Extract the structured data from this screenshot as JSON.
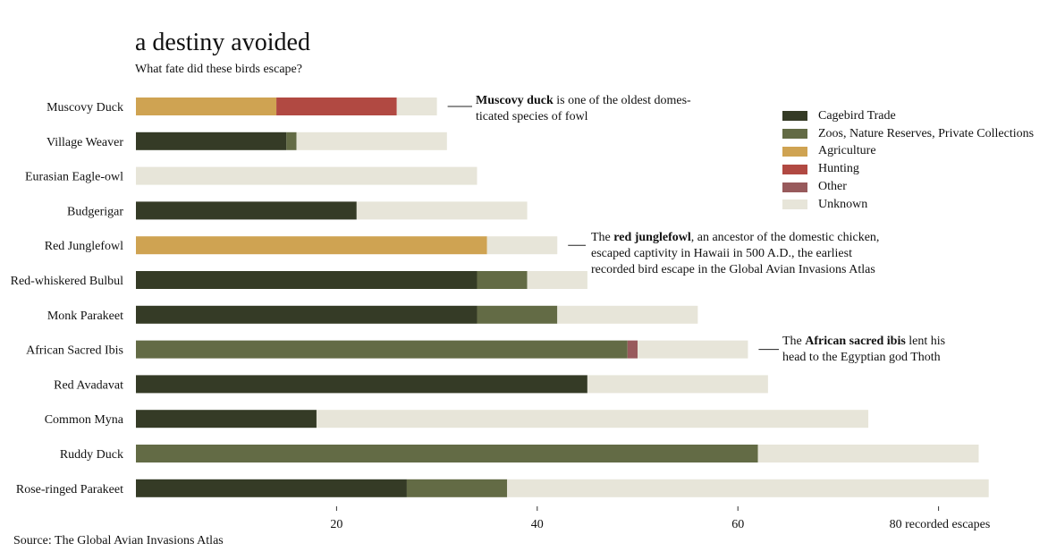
{
  "title": "a destiny avoided",
  "subtitle": "What fate did these birds escape?",
  "source": "Source: The Global Avian Invasions Atlas",
  "chart_data": {
    "type": "bar",
    "orientation": "horizontal",
    "stacked": true,
    "title": "a destiny avoided",
    "subtitle": "What fate did these birds escape?",
    "xlabel": "recorded escapes",
    "x_ticks": [
      20,
      40,
      60,
      80
    ],
    "x_tick_labels": [
      "20",
      "40",
      "60",
      "80 recorded escapes"
    ],
    "xlim": [
      0,
      85
    ],
    "grid": false,
    "legend_position": "right",
    "categories": [
      "Muscovy Duck",
      "Village Weaver",
      "Eurasian Eagle-owl",
      "Budgerigar",
      "Red Junglefowl",
      "Red-whiskered Bulbul",
      "Monk Parakeet",
      "African Sacred Ibis",
      "Red Avadavat",
      "Common Myna",
      "Ruddy Duck",
      "Rose-ringed Parakeet"
    ],
    "series": [
      {
        "name": "Cagebird Trade",
        "color": "#353b26",
        "values": [
          0,
          15,
          0,
          22,
          0,
          34,
          34,
          0,
          45,
          18,
          0,
          27
        ]
      },
      {
        "name": "Zoos, Nature Reserves, Private Collections",
        "color": "#636b45",
        "values": [
          0,
          1,
          0,
          0,
          0,
          5,
          8,
          49,
          0,
          0,
          62,
          10
        ]
      },
      {
        "name": "Agriculture",
        "color": "#cfa352",
        "values": [
          14,
          0,
          0,
          0,
          35,
          0,
          0,
          0,
          0,
          0,
          0,
          0
        ]
      },
      {
        "name": "Hunting",
        "color": "#b14942",
        "values": [
          12,
          0,
          0,
          0,
          0,
          0,
          0,
          0,
          0,
          0,
          0,
          0
        ]
      },
      {
        "name": "Other",
        "color": "#985a5c",
        "values": [
          0,
          0,
          0,
          0,
          0,
          0,
          0,
          1,
          0,
          0,
          0,
          0
        ]
      },
      {
        "name": "Unknown",
        "color": "#e7e5d9",
        "values": [
          4,
          15,
          34,
          17,
          7,
          6,
          14,
          11,
          18,
          55,
          22,
          48
        ]
      }
    ],
    "annotations": [
      {
        "category": "Muscovy Duck",
        "bold": "Muscovy duck",
        "rest": " is one of the oldest domes-",
        "line2": "ticated species of fowl"
      },
      {
        "category": "Red Junglefowl",
        "pre": "The ",
        "bold": "red junglefowl",
        "rest": ", an ancestor of the domestic chicken,",
        "line2": "escaped captivity in Hawaii in 500 A.D., the earliest",
        "line3": "recorded bird escape in the Global Avian Invasions Atlas"
      },
      {
        "category": "African Sacred Ibis",
        "pre": "The ",
        "bold": "African sacred ibis",
        "rest": " lent his",
        "line2": "head to the Egyptian god Thoth"
      }
    ]
  }
}
